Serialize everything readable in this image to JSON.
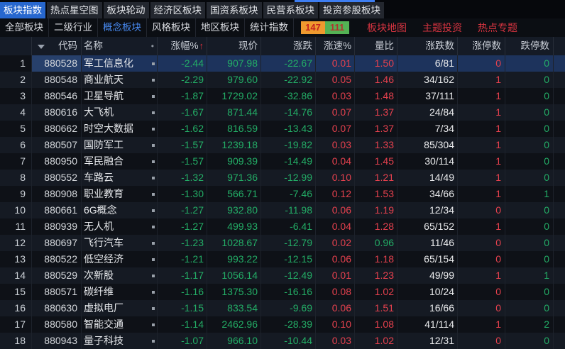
{
  "top_tabs": [
    {
      "label": "板块指数",
      "selected": true
    },
    {
      "label": "热点星空图",
      "selected": false
    },
    {
      "label": "板块轮动",
      "selected": false
    },
    {
      "label": "经济区板块",
      "selected": false
    },
    {
      "label": "国资系板块",
      "selected": false
    },
    {
      "label": "民营系板块",
      "selected": false
    },
    {
      "label": "投资参股板块",
      "selected": false
    }
  ],
  "sub_nav": {
    "items": [
      {
        "label": "全部板块",
        "selected": false
      },
      {
        "label": "二级行业",
        "selected": false
      },
      {
        "label": "概念板块",
        "selected": true
      },
      {
        "label": "风格板块",
        "selected": false
      },
      {
        "label": "地区板块",
        "selected": false
      },
      {
        "label": "统计指数",
        "selected": false
      }
    ],
    "badges": [
      {
        "value": "147",
        "style": "orange"
      },
      {
        "value": "111",
        "style": "green"
      }
    ],
    "links": [
      "板块地图",
      "主题投资",
      "热点专题"
    ]
  },
  "table": {
    "columns": [
      {
        "label": ""
      },
      {
        "label": "代码"
      },
      {
        "label": "名称",
        "dot": true
      },
      {
        "label": "涨幅%",
        "sorted": true
      },
      {
        "label": "现价"
      },
      {
        "label": "涨跌"
      },
      {
        "label": "涨速%"
      },
      {
        "label": "量比"
      },
      {
        "label": "涨跌数"
      },
      {
        "label": "涨停数"
      },
      {
        "label": "跌停数"
      }
    ],
    "sort_indicator": "↑",
    "rows": [
      {
        "seq": "1",
        "code": "880528",
        "name": "军工信息化",
        "pct": "-2.44",
        "price": "907.98",
        "chg": "-22.67",
        "speed": "0.01",
        "ratio": "1.50",
        "ratio_up": true,
        "updown": "6/81",
        "limit_up": "0",
        "limit_down": "0",
        "selected": true
      },
      {
        "seq": "2",
        "code": "880548",
        "name": "商业航天",
        "pct": "-2.29",
        "price": "979.60",
        "chg": "-22.92",
        "speed": "0.05",
        "ratio": "1.46",
        "ratio_up": true,
        "updown": "34/162",
        "limit_up": "1",
        "limit_down": "0",
        "selected": false
      },
      {
        "seq": "3",
        "code": "880546",
        "name": "卫星导航",
        "pct": "-1.87",
        "price": "1729.02",
        "chg": "-32.86",
        "speed": "0.03",
        "ratio": "1.48",
        "ratio_up": true,
        "updown": "37/111",
        "limit_up": "1",
        "limit_down": "0",
        "selected": false
      },
      {
        "seq": "4",
        "code": "880616",
        "name": "大飞机",
        "pct": "-1.67",
        "price": "871.44",
        "chg": "-14.76",
        "speed": "0.07",
        "ratio": "1.37",
        "ratio_up": true,
        "updown": "24/84",
        "limit_up": "1",
        "limit_down": "0",
        "selected": false
      },
      {
        "seq": "5",
        "code": "880662",
        "name": "时空大数据",
        "pct": "-1.62",
        "price": "816.59",
        "chg": "-13.43",
        "speed": "0.07",
        "ratio": "1.37",
        "ratio_up": true,
        "updown": "7/34",
        "limit_up": "1",
        "limit_down": "0",
        "selected": false
      },
      {
        "seq": "6",
        "code": "880507",
        "name": "国防军工",
        "pct": "-1.57",
        "price": "1239.18",
        "chg": "-19.82",
        "speed": "0.03",
        "ratio": "1.33",
        "ratio_up": true,
        "updown": "85/304",
        "limit_up": "1",
        "limit_down": "0",
        "selected": false
      },
      {
        "seq": "7",
        "code": "880950",
        "name": "军民融合",
        "pct": "-1.57",
        "price": "909.39",
        "chg": "-14.49",
        "speed": "0.04",
        "ratio": "1.45",
        "ratio_up": true,
        "updown": "30/114",
        "limit_up": "1",
        "limit_down": "0",
        "selected": false
      },
      {
        "seq": "8",
        "code": "880552",
        "name": "车路云",
        "pct": "-1.32",
        "price": "971.36",
        "chg": "-12.99",
        "speed": "0.10",
        "ratio": "1.21",
        "ratio_up": true,
        "updown": "14/49",
        "limit_up": "1",
        "limit_down": "0",
        "selected": false
      },
      {
        "seq": "9",
        "code": "880908",
        "name": "职业教育",
        "pct": "-1.30",
        "price": "566.71",
        "chg": "-7.46",
        "speed": "0.12",
        "ratio": "1.53",
        "ratio_up": true,
        "updown": "34/66",
        "limit_up": "1",
        "limit_down": "1",
        "selected": false
      },
      {
        "seq": "10",
        "code": "880661",
        "name": "6G概念",
        "pct": "-1.27",
        "price": "932.80",
        "chg": "-11.98",
        "speed": "0.06",
        "ratio": "1.19",
        "ratio_up": true,
        "updown": "12/34",
        "limit_up": "0",
        "limit_down": "0",
        "selected": false
      },
      {
        "seq": "11",
        "code": "880939",
        "name": "无人机",
        "pct": "-1.27",
        "price": "499.93",
        "chg": "-6.41",
        "speed": "0.04",
        "ratio": "1.28",
        "ratio_up": true,
        "updown": "65/152",
        "limit_up": "1",
        "limit_down": "0",
        "selected": false
      },
      {
        "seq": "12",
        "code": "880697",
        "name": "飞行汽车",
        "pct": "-1.23",
        "price": "1028.67",
        "chg": "-12.79",
        "speed": "0.02",
        "ratio": "0.96",
        "ratio_up": false,
        "updown": "11/46",
        "limit_up": "0",
        "limit_down": "0",
        "selected": false
      },
      {
        "seq": "13",
        "code": "880522",
        "name": "低空经济",
        "pct": "-1.21",
        "price": "993.22",
        "chg": "-12.15",
        "speed": "0.06",
        "ratio": "1.18",
        "ratio_up": true,
        "updown": "65/154",
        "limit_up": "0",
        "limit_down": "0",
        "selected": false
      },
      {
        "seq": "14",
        "code": "880529",
        "name": "次新股",
        "pct": "-1.17",
        "price": "1056.14",
        "chg": "-12.49",
        "speed": "0.01",
        "ratio": "1.23",
        "ratio_up": true,
        "updown": "49/99",
        "limit_up": "1",
        "limit_down": "1",
        "selected": false
      },
      {
        "seq": "15",
        "code": "880571",
        "name": "碳纤维",
        "pct": "-1.16",
        "price": "1375.30",
        "chg": "-16.16",
        "speed": "0.08",
        "ratio": "1.02",
        "ratio_up": true,
        "updown": "10/24",
        "limit_up": "0",
        "limit_down": "0",
        "selected": false
      },
      {
        "seq": "16",
        "code": "880630",
        "name": "虚拟电厂",
        "pct": "-1.15",
        "price": "833.54",
        "chg": "-9.69",
        "speed": "0.06",
        "ratio": "1.51",
        "ratio_up": true,
        "updown": "16/66",
        "limit_up": "0",
        "limit_down": "0",
        "selected": false
      },
      {
        "seq": "17",
        "code": "880580",
        "name": "智能交通",
        "pct": "-1.14",
        "price": "2462.96",
        "chg": "-28.39",
        "speed": "0.10",
        "ratio": "1.08",
        "ratio_up": true,
        "updown": "41/114",
        "limit_up": "1",
        "limit_down": "2",
        "selected": false
      },
      {
        "seq": "18",
        "code": "880943",
        "name": "量子科技",
        "pct": "-1.07",
        "price": "966.10",
        "chg": "-10.44",
        "speed": "0.03",
        "ratio": "1.02",
        "ratio_up": true,
        "updown": "12/31",
        "limit_up": "0",
        "limit_down": "0",
        "selected": false
      }
    ]
  },
  "colors": {
    "up_red": "#e6414e",
    "down_green": "#23ad66",
    "selected_tab_blue": "#2767ce",
    "selected_text_blue": "#4788ee",
    "menu_red": "#d63440",
    "badge_orange": "#ef9a2f",
    "badge_green": "#54b254",
    "selected_row_blue": "#1d335c"
  }
}
